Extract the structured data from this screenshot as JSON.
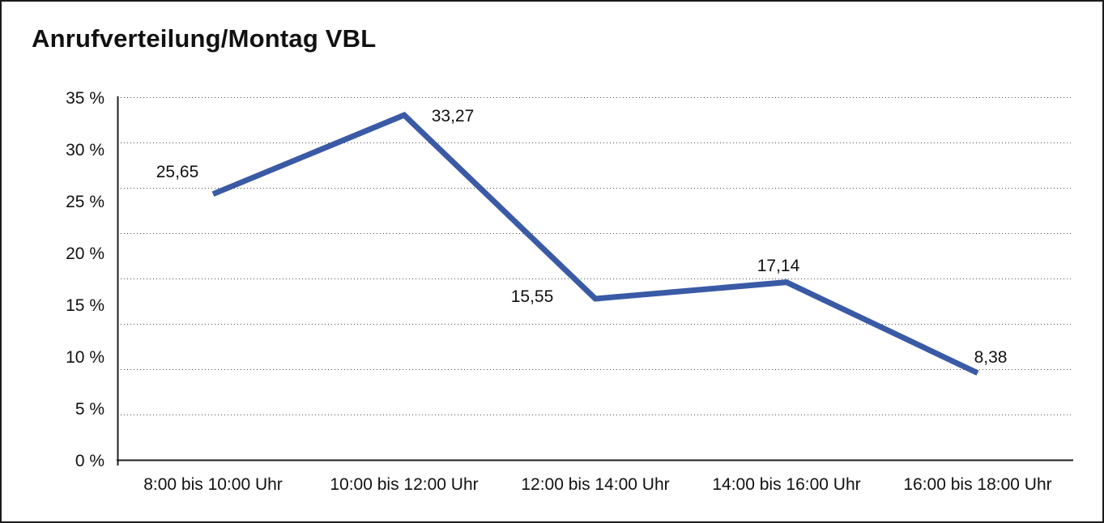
{
  "frame": {
    "border_color": "#1b1b1b",
    "background_color": "#ffffff"
  },
  "chart_data": {
    "type": "line",
    "title": "Anrufverteilung/Montag VBL",
    "categories": [
      "8:00 bis 10:00 Uhr",
      "10:00 bis 12:00 Uhr",
      "12:00 bis 14:00 Uhr",
      "14:00 bis 16:00 Uhr",
      "16:00 bis 18:00 Uhr"
    ],
    "values": [
      25.65,
      33.27,
      15.55,
      17.14,
      8.38
    ],
    "value_labels": [
      "25,65",
      "33,27",
      "15,55",
      "17,14",
      "8,38"
    ],
    "y_tick_labels": [
      "35 %",
      "30 %",
      "25 %",
      "20 %",
      "15 %",
      "10 %",
      "5 %",
      "0 %"
    ],
    "ylim": [
      0,
      35
    ],
    "xlabel": "",
    "ylabel": "",
    "legend": "none",
    "grid": "horizontal dotted",
    "line_color": "#3A5AA6",
    "axis_color": "#1f1f1f",
    "gridline_color": "#4d4d4d",
    "text_color": "#111111"
  }
}
